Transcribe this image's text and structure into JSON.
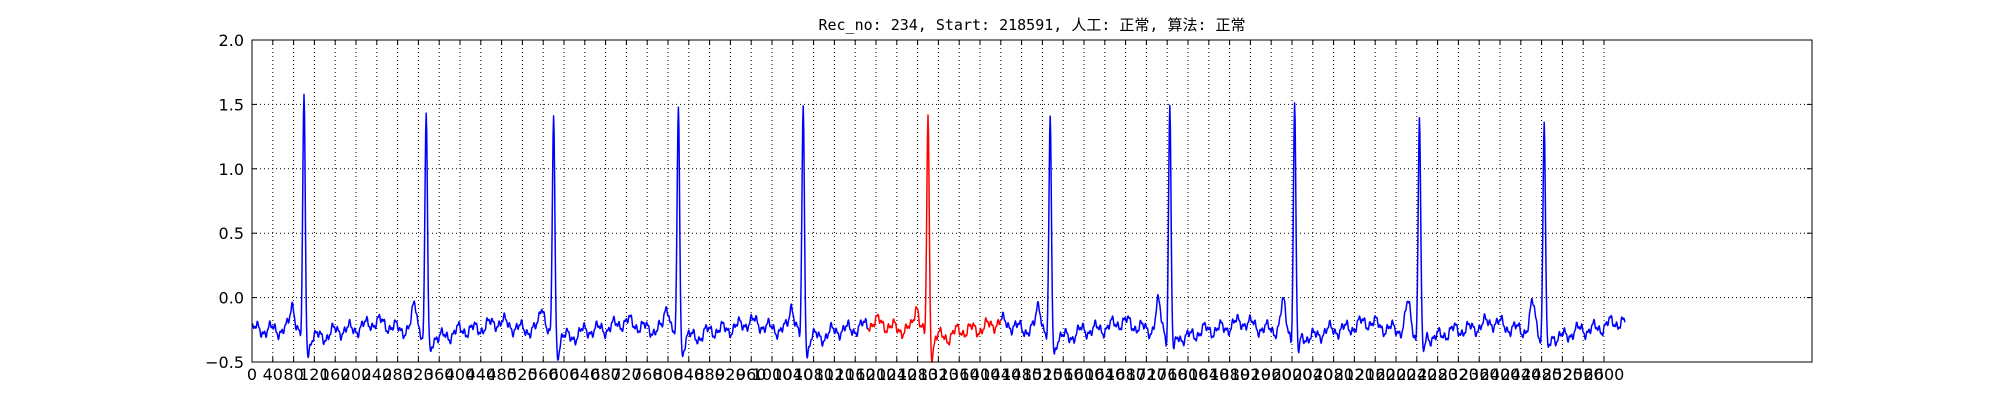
{
  "chart_data": {
    "type": "line",
    "title": "Rec_no: 234, Start: 218591, 人工: 正常, 算法: 正常",
    "xlabel": "",
    "ylabel": "",
    "xlim": [
      0,
      3000
    ],
    "ylim": [
      -0.5,
      2.0
    ],
    "x_tick_step": 40,
    "x_tick_labels": [
      "0",
      "40",
      "80",
      "120",
      "160",
      "200",
      "240",
      "280",
      "320",
      "360",
      "400",
      "440",
      "480",
      "520",
      "560",
      "600",
      "640",
      "680",
      "720",
      "760",
      "800",
      "840",
      "880",
      "920",
      "960",
      "1000",
      "1040",
      "1080",
      "1120",
      "1160",
      "1200",
      "1240",
      "1280",
      "1320",
      "1360",
      "1400",
      "1440",
      "1480",
      "1520",
      "1560",
      "1600",
      "1640",
      "1680",
      "1720",
      "1760",
      "1800",
      "1840",
      "1880",
      "1920",
      "1960",
      "2000",
      "2040",
      "2080",
      "2120",
      "2160",
      "2200",
      "2240",
      "2280",
      "2320",
      "2360",
      "2400",
      "2440",
      "2480",
      "2520",
      "2560",
      "2600"
    ],
    "y_ticks": [
      -0.5,
      0.0,
      0.5,
      1.0,
      1.5,
      2.0
    ],
    "y_tick_labels": [
      "−0.5",
      "0.0",
      "0.5",
      "1.0",
      "1.5",
      "2.0"
    ],
    "grid": true,
    "colors": {
      "normal": "#0000ff",
      "highlight": "#ff0000"
    },
    "beats": [
      {
        "r": 100,
        "peak": 1.5
      },
      {
        "r": 335,
        "peak": 1.39
      },
      {
        "r": 580,
        "peak": 1.38
      },
      {
        "r": 820,
        "peak": 1.44
      },
      {
        "r": 1060,
        "peak": 1.42
      },
      {
        "r": 1300,
        "peak": 1.35,
        "highlight": true
      },
      {
        "r": 1535,
        "peak": 1.33
      },
      {
        "r": 1765,
        "peak": 1.44
      },
      {
        "r": 2005,
        "peak": 1.46
      },
      {
        "r": 2245,
        "peak": 1.37
      },
      {
        "r": 2485,
        "peak": 1.33
      }
    ],
    "series": [
      {
        "color": "#0000ff",
        "x_range": [
          0,
          1185
        ]
      },
      {
        "color": "#ff0000",
        "x_range": [
          1185,
          1440
        ]
      },
      {
        "color": "#0000ff",
        "x_range": [
          1440,
          2640
        ]
      }
    ]
  }
}
